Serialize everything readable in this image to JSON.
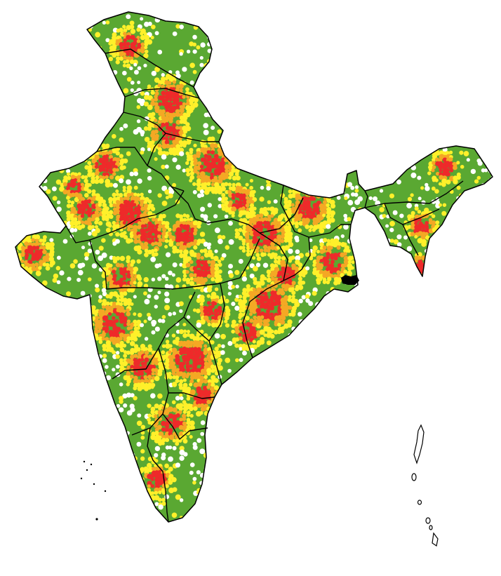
{
  "map": {
    "palette": {
      "background": "#ffffff",
      "low": "#ffffff",
      "moderate": "#5aa832",
      "elevated": "#fff02a",
      "high": "#f4a824",
      "very_high": "#ee2a2a",
      "border": "#000000"
    },
    "legend": null
  }
}
